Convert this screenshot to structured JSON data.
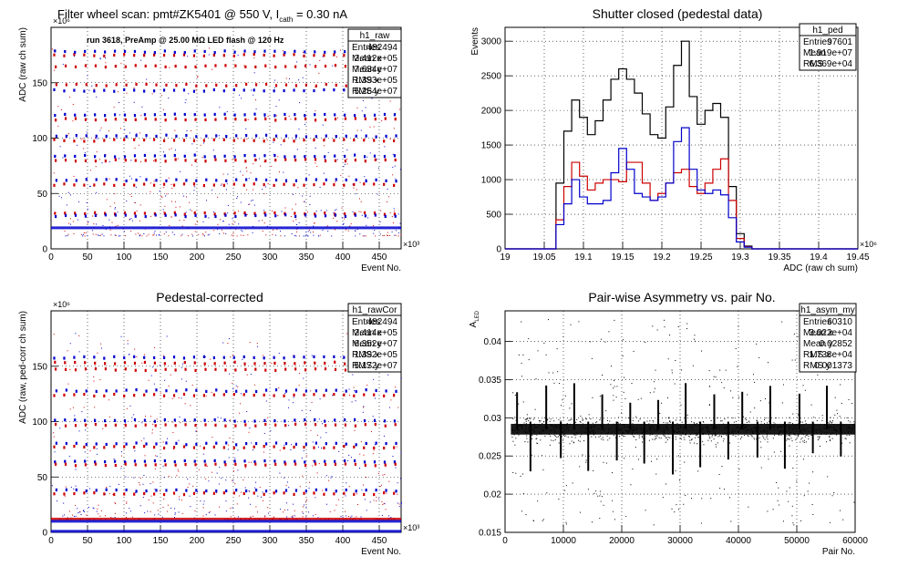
{
  "colors": {
    "black": "#000000",
    "red": "#cc0000",
    "blue": "#0000cc",
    "grid": "#000000"
  },
  "panels": [
    {
      "title": "Filter wheel scan: pmt#ZK5401 @   550 V, I",
      "title_sub": "cath",
      "title_tail": " = 0.30 nA",
      "annotation": "run 3618, PreAmp @ 25.00 MΩ LED flash @  120 Hz",
      "stats": {
        "name": "h1_raw",
        "rows": [
          {
            "label": "Entries",
            "value": "482494"
          },
          {
            "label": "Mean x",
            "value": "2.412e+05"
          },
          {
            "label": "Mean y",
            "value": "7.634e+07"
          },
          {
            "label": "RMS x",
            "value": "1.393e+05"
          },
          {
            "label": "RMS y",
            "value": "5.264e+07"
          }
        ]
      },
      "chart_data": {
        "type": "scatter",
        "xlabel": "Event No.",
        "ylabel": "ADC (raw ch sum)",
        "x_multiplier": "×10³",
        "y_multiplier": "×10⁶",
        "xlim": [
          0,
          480
        ],
        "ylim": [
          0,
          200
        ],
        "x_ticks": [
          0,
          50,
          100,
          150,
          200,
          250,
          300,
          350,
          400,
          450
        ],
        "y_ticks": [
          0,
          50,
          100,
          150
        ],
        "bands": [
          {
            "y": 175,
            "color": "red"
          },
          {
            "y": 178,
            "color": "blue"
          },
          {
            "y": 165,
            "color": "red"
          },
          {
            "y": 148,
            "color": "red"
          },
          {
            "y": 143,
            "color": "blue"
          },
          {
            "y": 121,
            "color": "blue"
          },
          {
            "y": 117,
            "color": "red"
          },
          {
            "y": 102,
            "color": "blue"
          },
          {
            "y": 98,
            "color": "red"
          },
          {
            "y": 84,
            "color": "blue"
          },
          {
            "y": 80,
            "color": "red"
          },
          {
            "y": 62,
            "color": "blue"
          },
          {
            "y": 58,
            "color": "red"
          },
          {
            "y": 32,
            "color": "red"
          },
          {
            "y": 30,
            "color": "blue"
          },
          {
            "y": 19,
            "color": "blue"
          }
        ]
      }
    },
    {
      "title": "Shutter closed (pedestal data)",
      "stats": {
        "name": "h1_ped",
        "rows": [
          {
            "label": "Entries",
            "value": "97601"
          },
          {
            "label": "Mean",
            "value": "1.919e+07"
          },
          {
            "label": "RMS",
            "value": "6.369e+04"
          }
        ]
      },
      "chart_data": {
        "type": "line",
        "xlabel": "ADC (raw ch sum)",
        "ylabel": "Events",
        "x_multiplier": "×10⁶",
        "xlim": [
          19.0,
          19.45
        ],
        "ylim": [
          0,
          3200
        ],
        "x_ticks": [
          19,
          19.05,
          19.1,
          19.15,
          19.2,
          19.25,
          19.3,
          19.35,
          19.4,
          19.45
        ],
        "y_ticks": [
          0,
          500,
          1000,
          1500,
          2000,
          2500,
          3000
        ],
        "x": [
          19.07,
          19.08,
          19.09,
          19.1,
          19.11,
          19.12,
          19.13,
          19.14,
          19.15,
          19.16,
          19.17,
          19.18,
          19.19,
          19.2,
          19.21,
          19.22,
          19.23,
          19.24,
          19.25,
          19.26,
          19.27,
          19.28,
          19.29,
          19.3,
          19.31
        ],
        "series": [
          {
            "color": "black",
            "values": [
              950,
              1700,
              2150,
              1900,
              1650,
              1850,
              2150,
              2450,
              2600,
              2450,
              2250,
              1950,
              1650,
              1600,
              2050,
              2650,
              3000,
              2200,
              1800,
              2000,
              2100,
              1900,
              900,
              220,
              40
            ]
          },
          {
            "color": "red",
            "values": [
              420,
              900,
              1250,
              1050,
              850,
              950,
              1000,
              1000,
              970,
              1250,
              1250,
              950,
              700,
              800,
              950,
              1100,
              1150,
              900,
              800,
              950,
              1150,
              1300,
              700,
              150,
              30
            ]
          },
          {
            "color": "blue",
            "values": [
              350,
              650,
              1000,
              750,
              650,
              650,
              700,
              1100,
              1450,
              1150,
              800,
              750,
              700,
              750,
              950,
              1550,
              1750,
              1150,
              850,
              800,
              850,
              780,
              450,
              100,
              25
            ]
          }
        ]
      }
    },
    {
      "title": "Pedestal-corrected",
      "stats": {
        "name": "h1_rawCor",
        "rows": [
          {
            "label": "Entries",
            "value": "482494"
          },
          {
            "label": "Mean x",
            "value": "2.414e+05"
          },
          {
            "label": "Mean y",
            "value": "6.352e+07"
          },
          {
            "label": "RMS x",
            "value": "1.392e+05"
          },
          {
            "label": "RMS y",
            "value": "5.172e+07"
          }
        ]
      },
      "chart_data": {
        "type": "scatter",
        "xlabel": "Event No.",
        "ylabel": "ADC (raw, ped-corr ch sum)",
        "x_multiplier": "×10³",
        "y_multiplier": "×10⁶",
        "xlim": [
          0,
          480
        ],
        "ylim": [
          0,
          200
        ],
        "x_ticks": [
          0,
          50,
          100,
          150,
          200,
          250,
          300,
          350,
          400,
          450
        ],
        "y_ticks": [
          0,
          50,
          100,
          150
        ],
        "bands": [
          {
            "y": 158,
            "color": "blue"
          },
          {
            "y": 153,
            "color": "red"
          },
          {
            "y": 147,
            "color": "red"
          },
          {
            "y": 128,
            "color": "blue"
          },
          {
            "y": 124,
            "color": "red"
          },
          {
            "y": 101,
            "color": "blue"
          },
          {
            "y": 97,
            "color": "red"
          },
          {
            "y": 80,
            "color": "blue"
          },
          {
            "y": 77,
            "color": "red"
          },
          {
            "y": 64,
            "color": "blue"
          },
          {
            "y": 61,
            "color": "red"
          },
          {
            "y": 38,
            "color": "blue"
          },
          {
            "y": 35,
            "color": "red"
          },
          {
            "y": 12,
            "color": "red"
          },
          {
            "y": 10,
            "color": "blue"
          },
          {
            "y": 1,
            "color": "blue"
          }
        ]
      }
    },
    {
      "title": "Pair-wise Asymmetry vs. pair No.",
      "stats": {
        "name": "h1_asym_my",
        "rows": [
          {
            "label": "Entries",
            "value": "60310"
          },
          {
            "label": "Mean x",
            "value": "3.022e+04"
          },
          {
            "label": "Mean y",
            "value": "0.02852"
          },
          {
            "label": "RMS x",
            "value": "1.738e+04"
          },
          {
            "label": "RMS y",
            "value": "0.001373"
          }
        ]
      },
      "chart_data": {
        "type": "scatter",
        "xlabel": "Pair No.",
        "ylabel": "A",
        "ylabel_sub": "LED",
        "xlim": [
          0,
          60000
        ],
        "ylim": [
          0.015,
          0.044
        ],
        "x_ticks": [
          0,
          10000,
          20000,
          30000,
          40000,
          50000,
          60000
        ],
        "y_ticks": [
          0.015,
          0.02,
          0.025,
          0.03,
          0.035,
          0.04
        ],
        "band_center": 0.0285,
        "spike_x": [
          1900,
          4200,
          6900,
          9400,
          11700,
          14100,
          16500,
          19000,
          21300,
          23700,
          26100,
          28600,
          30800,
          33300,
          35700,
          38100,
          40500,
          43100,
          45300,
          47800,
          50300,
          52600,
          55000,
          57400
        ]
      }
    }
  ]
}
